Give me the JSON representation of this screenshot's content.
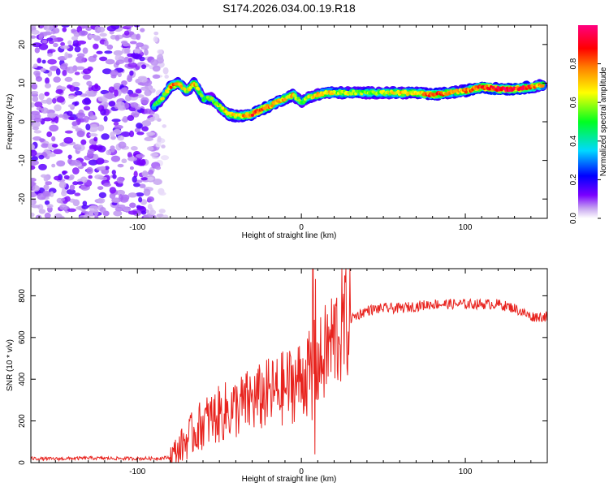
{
  "title": "S174.2026.034.00.19.R18",
  "chart_data": [
    {
      "type": "heatmap",
      "xlabel": "Height of straight line (km)",
      "ylabel": "Frequency (Hz)",
      "xlim": [
        -165,
        150
      ],
      "ylim": [
        -25,
        25
      ],
      "x_ticks": [
        -100,
        0,
        100
      ],
      "y_ticks": [
        -20,
        -10,
        0,
        10,
        20
      ],
      "colorbar": {
        "label": "Normalized spectral amplitude",
        "range": [
          0,
          1
        ],
        "ticks": [
          "0.0",
          "0.2",
          "0.4",
          "0.6",
          "0.8"
        ],
        "ticks_values": [
          0.0,
          0.2,
          0.4,
          0.6,
          0.8
        ],
        "colors": [
          "#ffffff",
          "#c8a8f0",
          "#7a00ff",
          "#0000ff",
          "#00d8ff",
          "#00ff20",
          "#ffff00",
          "#ff8000",
          "#ff0000",
          "#ff0080"
        ]
      },
      "noise_region": {
        "x_range": [
          -165,
          -80
        ],
        "freq_range": [
          -25,
          25
        ]
      },
      "ridge": {
        "x": [
          -90,
          -85,
          -80,
          -75,
          -70,
          -65,
          -60,
          -55,
          -50,
          -45,
          -40,
          -35,
          -30,
          -25,
          -20,
          -15,
          -10,
          -5,
          0,
          5,
          10,
          15,
          20,
          30,
          40,
          50,
          60,
          70,
          80,
          90,
          100,
          110,
          120,
          130,
          140,
          148
        ],
        "freq": [
          4,
          6,
          9,
          10,
          8,
          10,
          6,
          6,
          4,
          2,
          1.5,
          1.5,
          2,
          3,
          4,
          5,
          6,
          7,
          5,
          6.5,
          7,
          7.5,
          7.5,
          7.5,
          7.5,
          7.5,
          7.5,
          7.5,
          7,
          7.5,
          8,
          9,
          8.5,
          8.5,
          9,
          9.5
        ],
        "amplitude": [
          0.45,
          0.6,
          0.75,
          0.8,
          0.6,
          0.75,
          0.5,
          0.55,
          0.6,
          0.7,
          0.65,
          0.75,
          0.8,
          0.85,
          0.8,
          0.75,
          0.7,
          0.7,
          0.55,
          0.6,
          0.7,
          0.75,
          0.6,
          0.6,
          0.55,
          0.6,
          0.7,
          0.65,
          0.85,
          0.7,
          0.75,
          0.85,
          0.9,
          0.9,
          0.8,
          0.7
        ]
      }
    },
    {
      "type": "line",
      "xlabel": "Height of straight line (km)",
      "ylabel": "SNR (10 * v/v)",
      "xlim": [
        -165,
        150
      ],
      "ylim": [
        0,
        930
      ],
      "x_ticks": [
        -100,
        0,
        100
      ],
      "y_ticks": [
        0,
        200,
        400,
        600,
        800
      ],
      "series": [
        {
          "color": "#e8231e",
          "x": [
            -165,
            -150,
            -130,
            -110,
            -90,
            -80,
            -75,
            -70,
            -65,
            -60,
            -55,
            -50,
            -45,
            -40,
            -35,
            -30,
            -25,
            -20,
            -15,
            -10,
            -5,
            0,
            3,
            6,
            7,
            8,
            9,
            12,
            15,
            20,
            25,
            30,
            40,
            50,
            60,
            70,
            80,
            90,
            100,
            110,
            120,
            130,
            140,
            150
          ],
          "y": [
            20,
            18,
            22,
            20,
            20,
            25,
            60,
            110,
            150,
            190,
            210,
            230,
            250,
            260,
            280,
            300,
            310,
            330,
            340,
            360,
            380,
            400,
            430,
            420,
            90,
            850,
            460,
            480,
            530,
            600,
            650,
            690,
            730,
            740,
            740,
            750,
            760,
            760,
            760,
            760,
            760,
            740,
            700,
            700
          ],
          "spikes": [
            {
              "x": 7,
              "y": 930
            },
            {
              "x": 8,
              "y": 40
            }
          ]
        }
      ]
    }
  ]
}
